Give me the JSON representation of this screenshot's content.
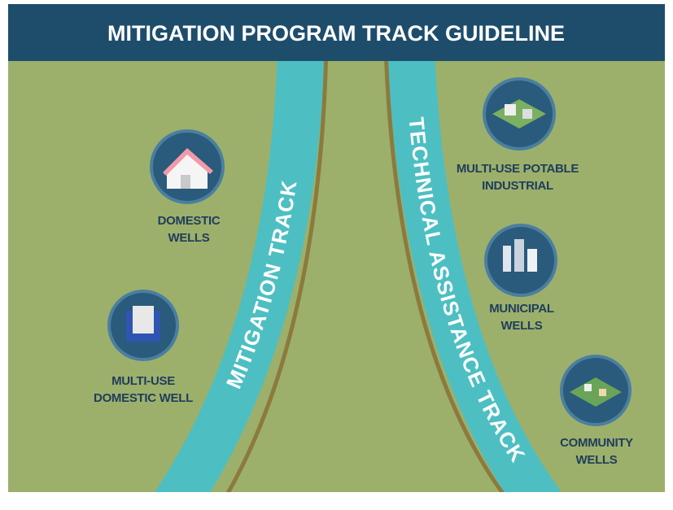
{
  "header": {
    "title": "MITIGATION PROGRAM TRACK GUIDELINE"
  },
  "tracks": [
    {
      "label": "MITIGATION TRACK"
    },
    {
      "label": "TECHNICAL ASSISTANCE TRACK"
    }
  ],
  "nodes": [
    {
      "lines": [
        "DOMESTIC",
        "WELLS"
      ]
    },
    {
      "lines": [
        "MULTI-USE",
        "DOMESTIC WELL"
      ]
    },
    {
      "lines": [
        "MULTI-USE POTABLE",
        "INDUSTRIAL"
      ]
    },
    {
      "lines": [
        "MUNICIPAL",
        "WELLS"
      ]
    },
    {
      "lines": [
        "COMMUNITY",
        "WELLS"
      ]
    }
  ]
}
